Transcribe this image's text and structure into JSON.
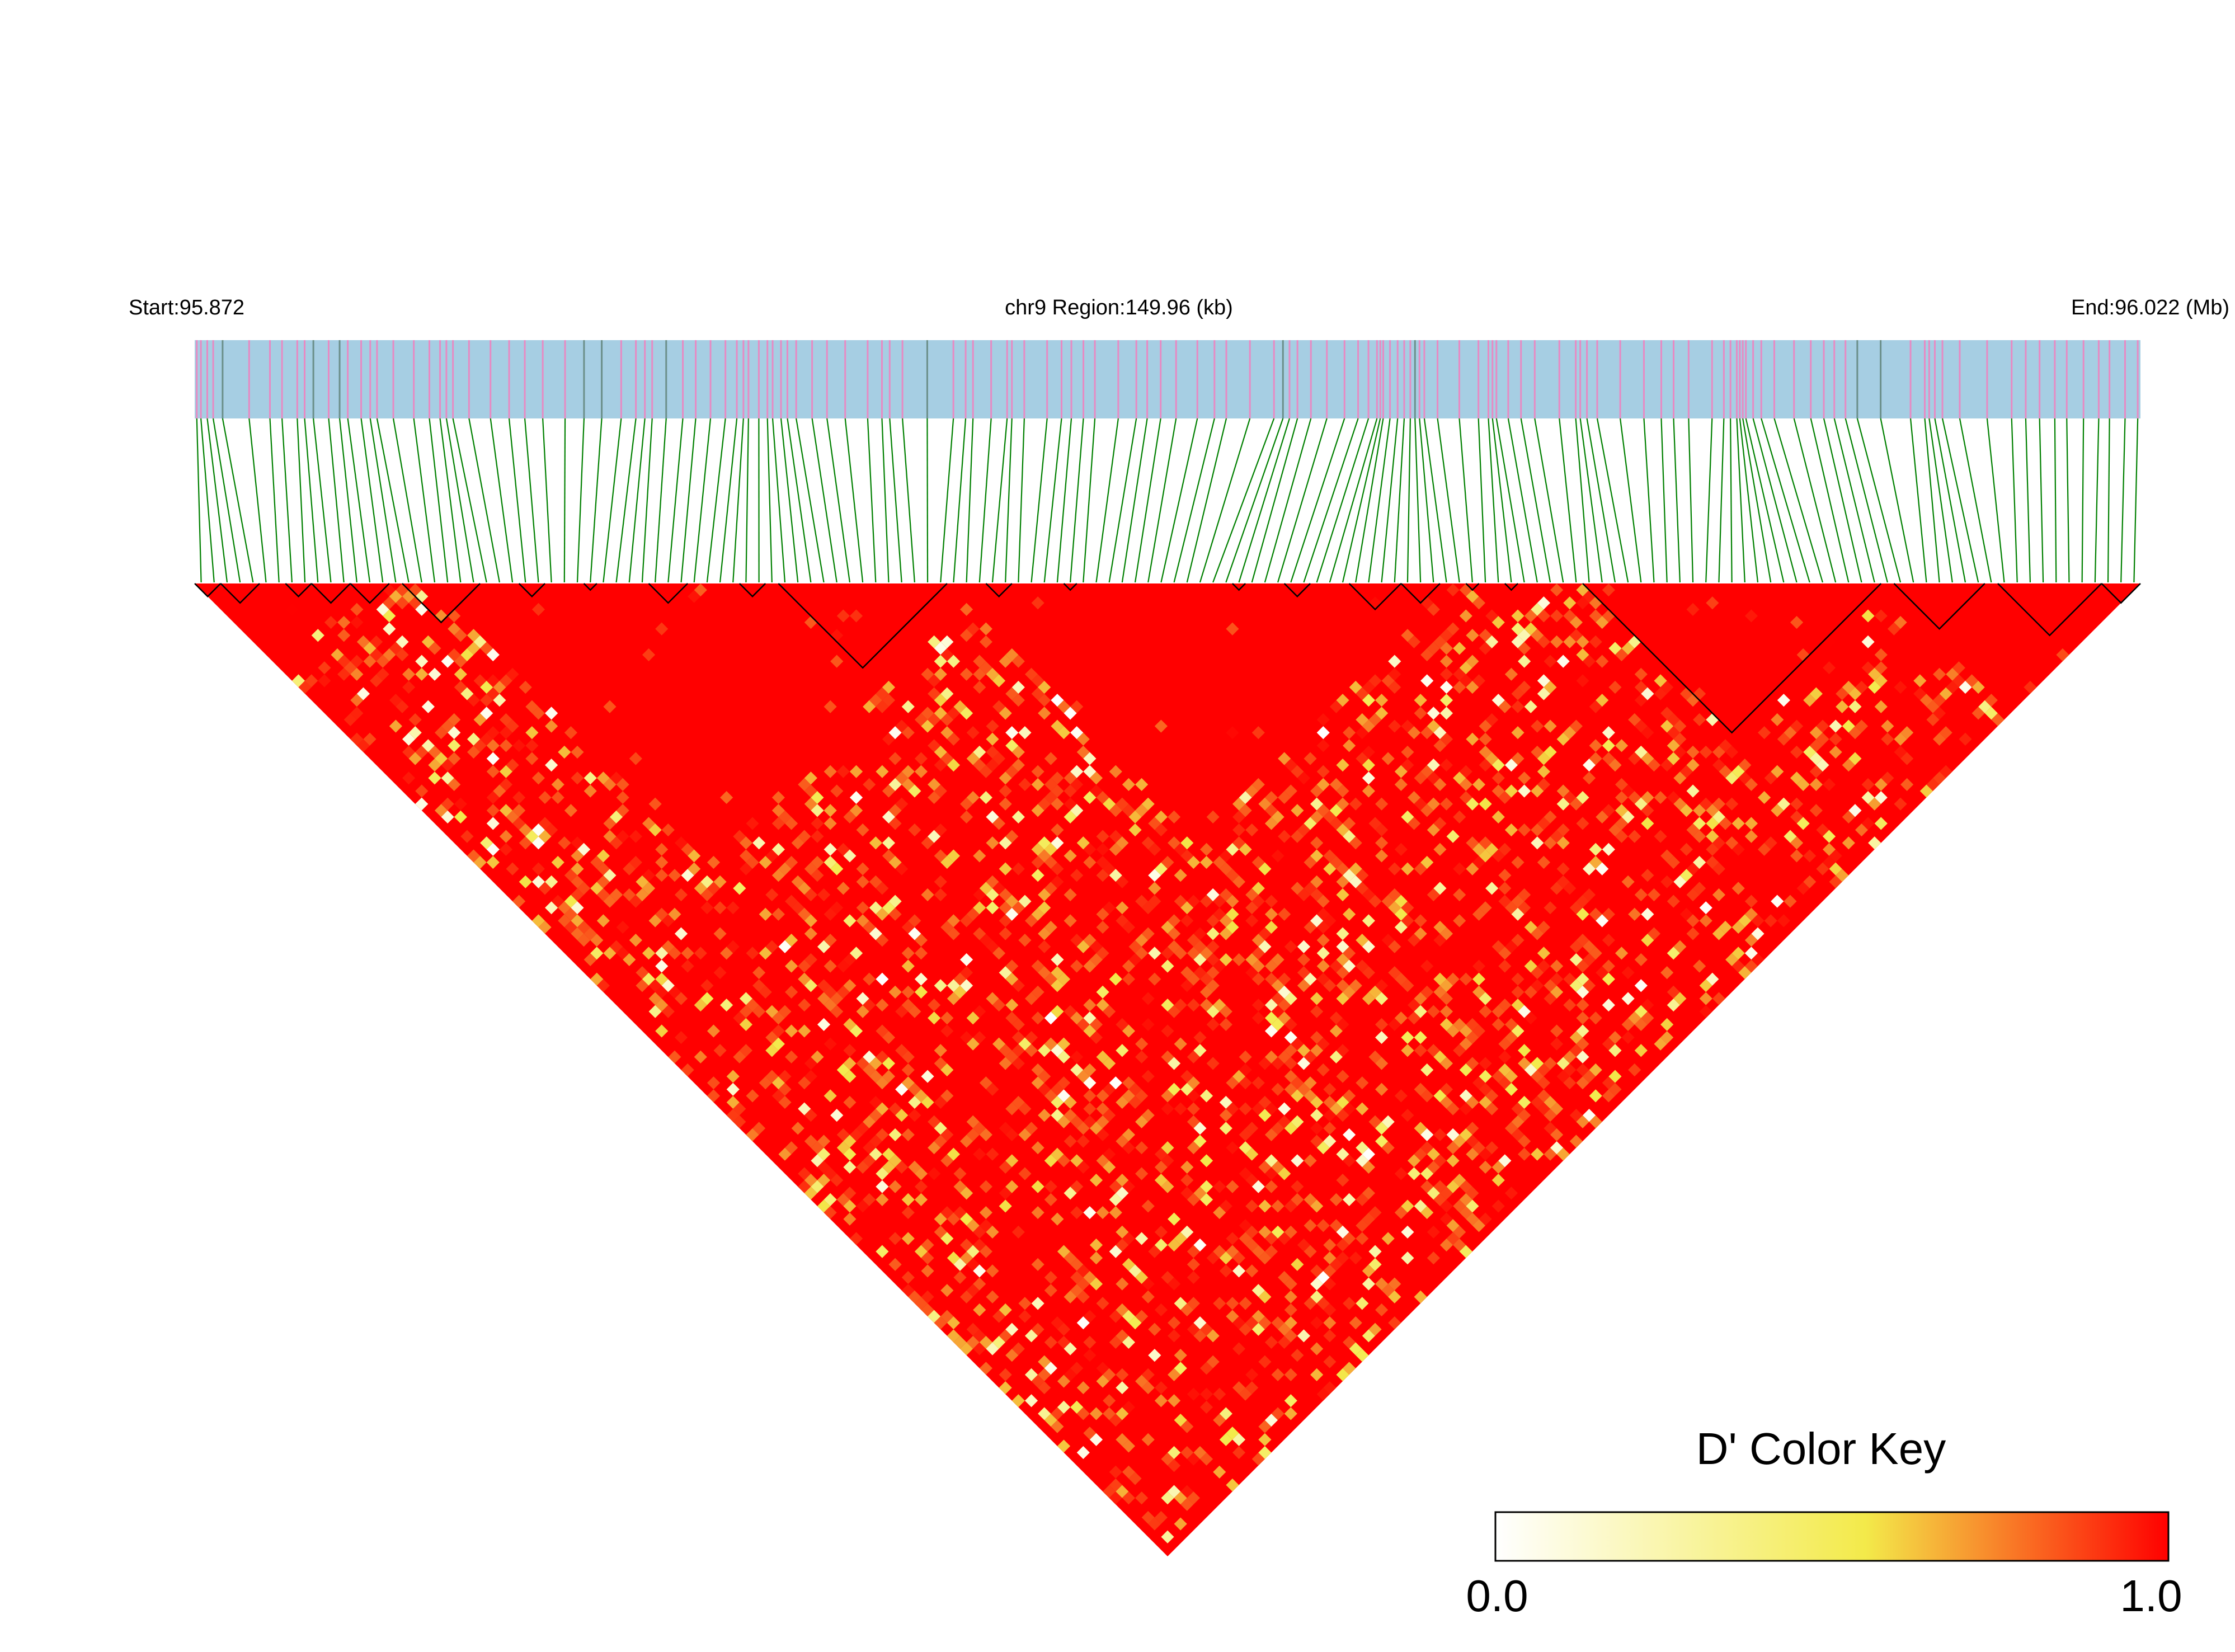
{
  "chart_data": {
    "type": "heatmap",
    "start_label": "Start:95.872",
    "region_label": "chr9 Region:149.96 (kb)",
    "end_label": "End:96.022 (Mb)",
    "chromosome": "chr9",
    "start_mb": 95.872,
    "end_mb": 96.022,
    "region_kb": 149.96,
    "legend": {
      "title": "D' Color Key",
      "min_label": "0.0",
      "max_label": "1.0",
      "min": 0.0,
      "max": 1.0,
      "colors": [
        "#ffffff",
        "#f3ea4a",
        "#ff0000"
      ]
    },
    "colors": {
      "track": "#a6cee3",
      "marker": "#e78ac3",
      "marker_dark": "#6b8f8a",
      "connector": "#008000",
      "block_outline": "#000000",
      "high_ld": "#ff0000"
    },
    "marker_count": 150,
    "haplotype_blocks": [
      [
        0,
        2
      ],
      [
        2,
        5
      ],
      [
        7,
        9
      ],
      [
        9,
        12
      ],
      [
        12,
        15
      ],
      [
        16,
        22
      ],
      [
        25,
        27
      ],
      [
        30,
        31
      ],
      [
        35,
        38
      ],
      [
        42,
        44
      ],
      [
        45,
        58
      ],
      [
        61,
        63
      ],
      [
        67,
        68
      ],
      [
        80,
        81
      ],
      [
        84,
        86
      ],
      [
        89,
        93
      ],
      [
        93,
        96
      ],
      [
        98,
        99
      ],
      [
        101,
        102
      ],
      [
        107,
        130
      ],
      [
        131,
        138
      ],
      [
        139,
        147
      ],
      [
        147,
        150
      ]
    ]
  }
}
